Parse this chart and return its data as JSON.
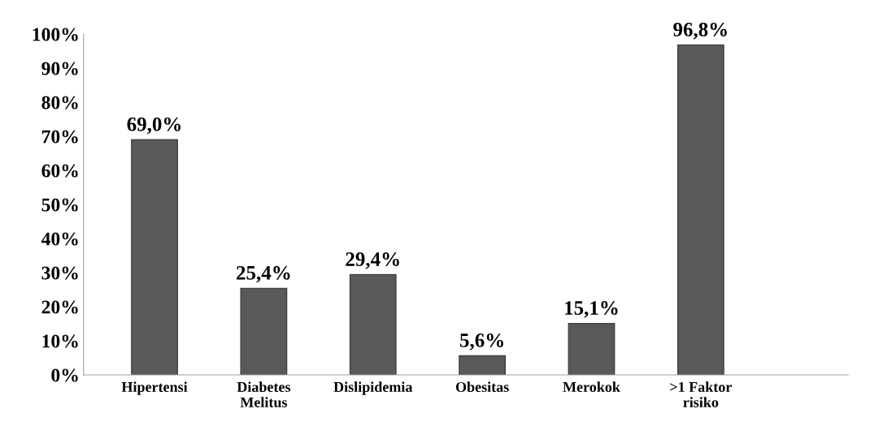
{
  "chart_data": {
    "type": "bar",
    "categories": [
      "Hipertensi",
      "Diabetes\nMelitus",
      "Dislipidemia",
      "Obesitas",
      "Merokok",
      ">1 Faktor\nrisiko"
    ],
    "values": [
      69.0,
      25.4,
      29.4,
      5.6,
      15.1,
      96.8
    ],
    "value_labels": [
      "69,0%",
      "25,4%",
      "29,4%",
      "5,6%",
      "15,1%",
      "96,8%"
    ],
    "color": "#595959",
    "ylim": [
      0,
      100
    ],
    "yticks": [
      {
        "value": 0,
        "label": "0%"
      },
      {
        "value": 10,
        "label": "10%"
      },
      {
        "value": 20,
        "label": "20%"
      },
      {
        "value": 30,
        "label": "30%"
      },
      {
        "value": 40,
        "label": "40%"
      },
      {
        "value": 50,
        "label": "50%"
      },
      {
        "value": 60,
        "label": "60%"
      },
      {
        "value": 70,
        "label": "70%"
      },
      {
        "value": 80,
        "label": "80%"
      },
      {
        "value": 90,
        "label": "90%"
      },
      {
        "value": 100,
        "label": "100%"
      }
    ],
    "grid": false,
    "legend": false
  }
}
